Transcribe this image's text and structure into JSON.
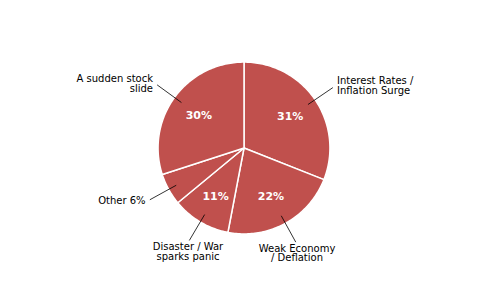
{
  "chart_data": {
    "type": "pie",
    "categories": [
      "Interest Rates /\nInflation Surge",
      "Weak Economy\n/ Deflation",
      "Disaster / War\nsparks panic",
      "Other 6%",
      "A sudden stock\nslide"
    ],
    "values": [
      31,
      22,
      11,
      6,
      30
    ],
    "value_labels": [
      "31%",
      "22%",
      "11%",
      null,
      "30%"
    ],
    "data_labels": true,
    "color": "#c0504d"
  }
}
